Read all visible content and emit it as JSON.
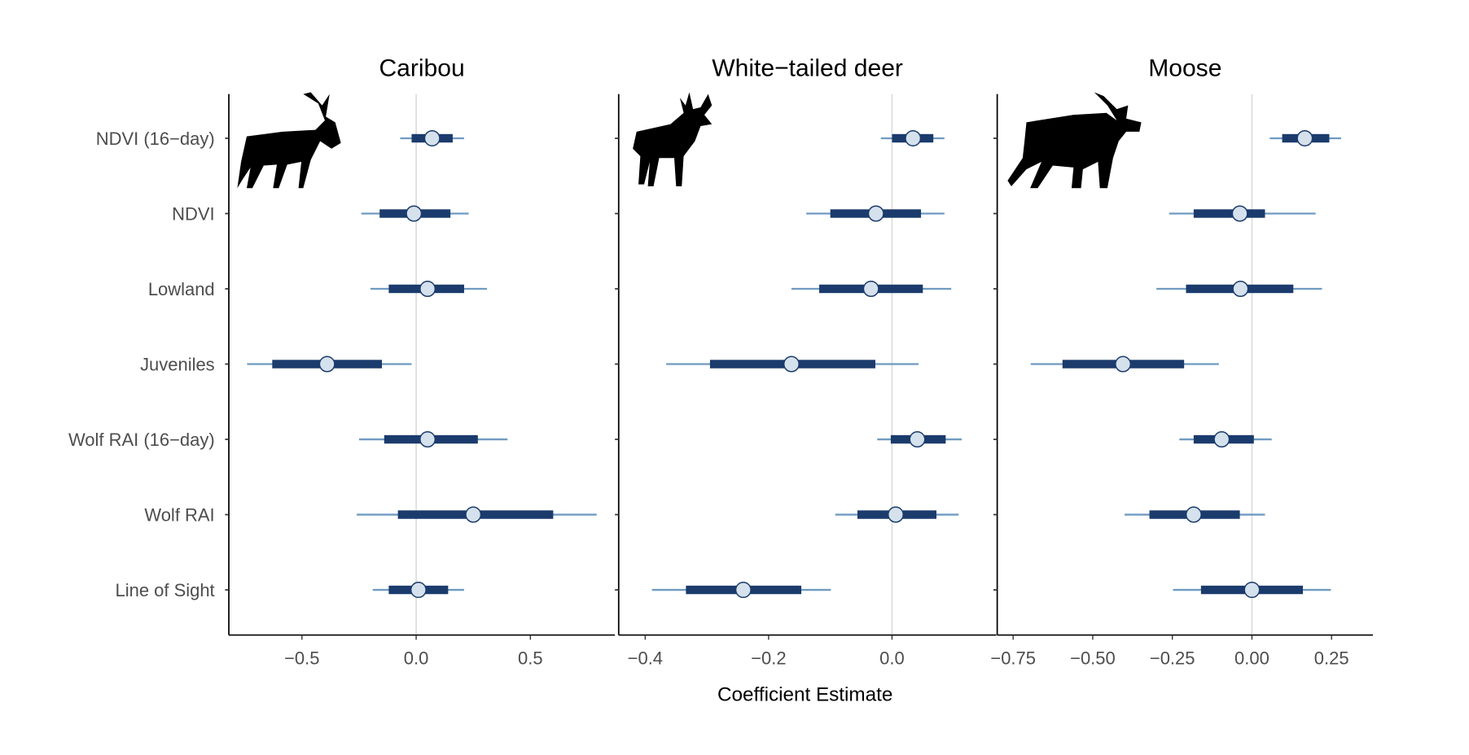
{
  "chart_data": {
    "type": "forest",
    "xlabel": "Coefficient Estimate",
    "row_labels": [
      "NDVI (16−day)",
      "NDVI",
      "Lowland",
      "Juveniles",
      "Wolf RAI (16−day)",
      "Wolf RAI",
      "Line of Sight"
    ],
    "colors": {
      "thin": "#6f9bc2",
      "thick": "#1b3b6d",
      "point_fill": "#d5e1ec",
      "zero": "#dddddd"
    },
    "panels": [
      {
        "title": "Caribou",
        "icon": "caribou-silhouette-icon",
        "xlim": [
          -0.82,
          0.87
        ],
        "ticks": [
          -0.5,
          0.0,
          0.5
        ],
        "tick_labels": [
          "−0.5",
          "0.0",
          "0.5"
        ],
        "rows": [
          {
            "est": 0.07,
            "inner": [
              -0.02,
              0.16
            ],
            "outer": [
              -0.07,
              0.21
            ]
          },
          {
            "est": -0.01,
            "inner": [
              -0.16,
              0.15
            ],
            "outer": [
              -0.24,
              0.23
            ]
          },
          {
            "est": 0.05,
            "inner": [
              -0.12,
              0.21
            ],
            "outer": [
              -0.2,
              0.31
            ]
          },
          {
            "est": -0.39,
            "inner": [
              -0.63,
              -0.15
            ],
            "outer": [
              -0.74,
              -0.02
            ]
          },
          {
            "est": 0.05,
            "inner": [
              -0.14,
              0.27
            ],
            "outer": [
              -0.25,
              0.4
            ]
          },
          {
            "est": 0.25,
            "inner": [
              -0.08,
              0.6
            ],
            "outer": [
              -0.26,
              0.79
            ]
          },
          {
            "est": 0.01,
            "inner": [
              -0.12,
              0.14
            ],
            "outer": [
              -0.19,
              0.21
            ]
          }
        ]
      },
      {
        "title": "White−tailed deer",
        "icon": "deer-silhouette-icon",
        "xlim": [
          -0.443,
          0.169
        ],
        "ticks": [
          -0.4,
          -0.2,
          0.0
        ],
        "tick_labels": [
          "−0.4",
          "−0.2",
          "0.0"
        ],
        "rows": [
          {
            "est": 0.034,
            "inner": [
              0.0,
              0.067
            ],
            "outer": [
              -0.018,
              0.085
            ]
          },
          {
            "est": -0.026,
            "inner": [
              -0.1,
              0.047
            ],
            "outer": [
              -0.139,
              0.085
            ]
          },
          {
            "est": -0.034,
            "inner": [
              -0.118,
              0.05
            ],
            "outer": [
              -0.163,
              0.096
            ]
          },
          {
            "est": -0.163,
            "inner": [
              -0.295,
              -0.027
            ],
            "outer": [
              -0.366,
              0.043
            ]
          },
          {
            "est": 0.041,
            "inner": [
              -0.002,
              0.087
            ],
            "outer": [
              -0.024,
              0.113
            ]
          },
          {
            "est": 0.006,
            "inner": [
              -0.056,
              0.072
            ],
            "outer": [
              -0.092,
              0.108
            ]
          },
          {
            "est": -0.241,
            "inner": [
              -0.334,
              -0.147
            ],
            "outer": [
              -0.389,
              -0.099
            ]
          }
        ]
      },
      {
        "title": "Moose",
        "icon": "moose-silhouette-icon",
        "xlim": [
          -0.8,
          0.38
        ],
        "ticks": [
          -0.75,
          -0.5,
          -0.25,
          0.0,
          0.25
        ],
        "tick_labels": [
          "−0.75",
          "−0.50",
          "−0.25",
          "0.00",
          "0.25"
        ],
        "rows": [
          {
            "est": 0.166,
            "inner": [
              0.095,
              0.243
            ],
            "outer": [
              0.056,
              0.28
            ]
          },
          {
            "est": -0.038,
            "inner": [
              -0.183,
              0.041
            ],
            "outer": [
              -0.26,
              0.2
            ]
          },
          {
            "est": -0.036,
            "inner": [
              -0.207,
              0.13
            ],
            "outer": [
              -0.3,
              0.22
            ]
          },
          {
            "est": -0.405,
            "inner": [
              -0.595,
              -0.213
            ],
            "outer": [
              -0.695,
              -0.104
            ]
          },
          {
            "est": -0.095,
            "inner": [
              -0.183,
              0.006
            ],
            "outer": [
              -0.228,
              0.062
            ]
          },
          {
            "est": -0.183,
            "inner": [
              -0.322,
              -0.038
            ],
            "outer": [
              -0.4,
              0.041
            ]
          },
          {
            "est": 0.0,
            "inner": [
              -0.16,
              0.16
            ],
            "outer": [
              -0.248,
              0.248
            ]
          }
        ]
      }
    ]
  }
}
